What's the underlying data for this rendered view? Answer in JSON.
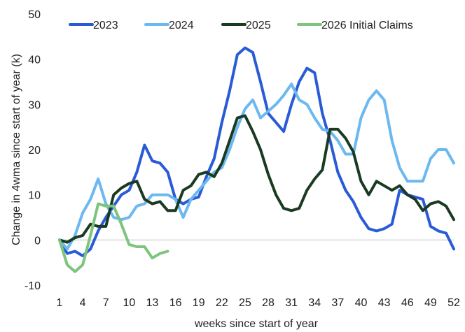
{
  "chart_data": {
    "type": "line",
    "title": "",
    "xlabel": "weeks since start of year",
    "ylabel": "Change in 4wma since start of year (k)",
    "xlim": [
      1,
      52
    ],
    "ylim": [
      -10,
      50
    ],
    "xticks": [
      1,
      4,
      7,
      10,
      13,
      16,
      19,
      22,
      25,
      28,
      31,
      34,
      37,
      40,
      43,
      46,
      49,
      52
    ],
    "yticks": [
      -10,
      0,
      10,
      20,
      30,
      40,
      50
    ],
    "grid": false,
    "zero_line": true,
    "legend": "top",
    "series": [
      {
        "name": "2023",
        "color": "#2a5bd7",
        "x": [
          1,
          2,
          3,
          4,
          5,
          6,
          7,
          8,
          9,
          10,
          11,
          12,
          13,
          14,
          15,
          16,
          17,
          18,
          19,
          20,
          21,
          22,
          23,
          24,
          25,
          26,
          27,
          28,
          29,
          30,
          31,
          32,
          33,
          34,
          35,
          36,
          37,
          38,
          39,
          40,
          41,
          42,
          43,
          44,
          45,
          46,
          47,
          48,
          49,
          50,
          51,
          52
        ],
        "values": [
          0,
          -3,
          -2.5,
          -3.5,
          -2,
          2,
          5,
          7.5,
          10,
          11,
          15,
          21,
          17.5,
          17,
          15,
          9,
          8,
          9,
          9.5,
          14,
          18,
          26,
          33,
          41,
          42.5,
          41.5,
          35,
          28,
          26,
          24,
          30,
          35,
          38,
          37,
          28,
          22,
          15,
          11,
          8.5,
          5,
          2.5,
          2,
          2.5,
          3.5,
          11,
          10,
          9.5,
          9,
          3,
          2,
          1.5,
          -2
        ]
      },
      {
        "name": "2024",
        "color": "#6cb8f0",
        "x": [
          1,
          2,
          3,
          4,
          5,
          6,
          7,
          8,
          9,
          10,
          11,
          12,
          13,
          14,
          15,
          16,
          17,
          18,
          19,
          20,
          21,
          22,
          23,
          24,
          25,
          26,
          27,
          28,
          29,
          30,
          31,
          32,
          33,
          34,
          35,
          36,
          37,
          38,
          39,
          40,
          41,
          42,
          43,
          44,
          45,
          46,
          47,
          48,
          49,
          50,
          51,
          52
        ],
        "values": [
          0,
          -2,
          1,
          6,
          9,
          13.5,
          8,
          5,
          4.5,
          5,
          7.5,
          8,
          10,
          10,
          10,
          9,
          5,
          9,
          11,
          13,
          15,
          16,
          20,
          25,
          29,
          31,
          27,
          28.5,
          30,
          32,
          34.5,
          31,
          30,
          27,
          24.5,
          24,
          22,
          19,
          19,
          27,
          31,
          33,
          31,
          22,
          16,
          13,
          13,
          13,
          18,
          20,
          20,
          17
        ]
      },
      {
        "name": "2025",
        "color": "#1a3a22",
        "x": [
          1,
          2,
          3,
          4,
          5,
          6,
          7,
          8,
          9,
          10,
          11,
          12,
          13,
          14,
          15,
          16,
          17,
          18,
          19,
          20,
          21,
          22,
          23,
          24,
          25,
          26,
          27,
          28,
          29,
          30,
          31,
          32,
          33,
          34,
          35,
          36,
          37,
          38,
          39,
          40,
          41,
          42,
          43,
          44,
          45,
          46,
          47,
          48,
          49,
          50,
          51,
          52
        ],
        "values": [
          0,
          -0.5,
          0.5,
          1,
          3.5,
          3,
          3,
          10,
          11.5,
          12.5,
          13,
          9,
          8,
          8.5,
          6.5,
          6.5,
          11,
          12,
          14.5,
          15,
          14,
          17,
          22,
          27,
          27.5,
          24,
          20,
          14.5,
          10,
          7,
          6.5,
          7,
          11,
          13.5,
          15.5,
          24.5,
          24.5,
          22.5,
          19.5,
          13,
          10,
          13,
          12,
          11,
          12,
          10,
          9,
          6.5,
          8,
          8.5,
          7.5,
          4.5
        ]
      },
      {
        "name": "2026 Initial Claims",
        "color": "#7dc47d",
        "x": [
          1,
          2,
          3,
          4,
          5,
          6,
          7,
          8,
          9,
          10,
          11,
          12,
          13,
          14,
          15
        ],
        "values": [
          0,
          -5.5,
          -7,
          -5.5,
          1,
          8,
          7.5,
          7.5,
          3.5,
          -1,
          -1.5,
          -1.5,
          -4,
          -3,
          -2.5
        ]
      }
    ]
  }
}
